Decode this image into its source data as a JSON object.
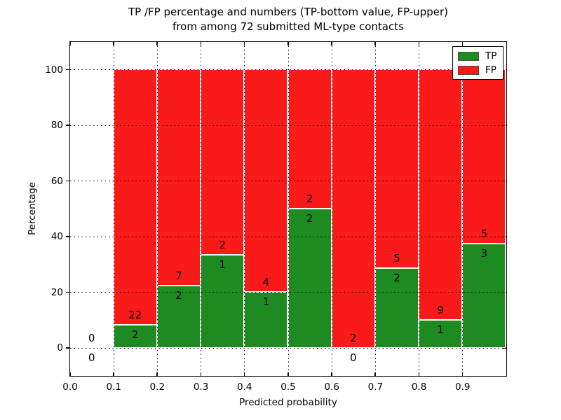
{
  "chart_data": {
    "type": "bar",
    "stacked": true,
    "title": "TP /FP percentage and numbers (TP-bottom value, FP-upper)\nfrom among 72 submitted ML-type contacts",
    "title_line1": "TP /FP percentage and numbers (TP-bottom value, FP-upper)",
    "title_line2": "from among 72 submitted ML-type contacts",
    "xlabel": "Predicted probability",
    "ylabel": "Percentage",
    "xlim": [
      0.0,
      1.0
    ],
    "ylim": [
      -10,
      110
    ],
    "x_ticks": [
      0.0,
      0.1,
      0.2,
      0.3,
      0.4,
      0.5,
      0.6,
      0.7,
      0.8,
      0.9
    ],
    "x_tick_labels": [
      "0.0",
      "0.1",
      "0.2",
      "0.3",
      "0.4",
      "0.5",
      "0.6",
      "0.7",
      "0.8",
      "0.9"
    ],
    "y_ticks": [
      0,
      20,
      40,
      60,
      80,
      100
    ],
    "y_tick_labels": [
      "0",
      "20",
      "40",
      "60",
      "80",
      "100"
    ],
    "grid": true,
    "grid_style": "dotted",
    "legend_position": "upper right",
    "total_contacts": 72,
    "series": [
      {
        "name": "TP",
        "color": "#1e8b22"
      },
      {
        "name": "FP",
        "color": "#fa1a1a"
      }
    ],
    "bins": [
      {
        "range": "0.0-0.1",
        "x_start": 0.0,
        "x_end": 0.1,
        "tp": 0,
        "fp": 0,
        "tp_pct": 0,
        "fp_pct": 0
      },
      {
        "range": "0.1-0.2",
        "x_start": 0.1,
        "x_end": 0.2,
        "tp": 2,
        "fp": 22,
        "tp_pct": 8.333,
        "fp_pct": 91.667
      },
      {
        "range": "0.2-0.3",
        "x_start": 0.2,
        "x_end": 0.3,
        "tp": 2,
        "fp": 7,
        "tp_pct": 22.222,
        "fp_pct": 77.778
      },
      {
        "range": "0.3-0.4",
        "x_start": 0.3,
        "x_end": 0.4,
        "tp": 1,
        "fp": 2,
        "tp_pct": 33.333,
        "fp_pct": 66.667
      },
      {
        "range": "0.4-0.5",
        "x_start": 0.4,
        "x_end": 0.5,
        "tp": 1,
        "fp": 4,
        "tp_pct": 20,
        "fp_pct": 80
      },
      {
        "range": "0.5-0.6",
        "x_start": 0.5,
        "x_end": 0.6,
        "tp": 2,
        "fp": 2,
        "tp_pct": 50,
        "fp_pct": 50
      },
      {
        "range": "0.6-0.7",
        "x_start": 0.6,
        "x_end": 0.7,
        "tp": 0,
        "fp": 2,
        "tp_pct": 0,
        "fp_pct": 100
      },
      {
        "range": "0.7-0.8",
        "x_start": 0.7,
        "x_end": 0.8,
        "tp": 2,
        "fp": 5,
        "tp_pct": 28.571,
        "fp_pct": 71.429
      },
      {
        "range": "0.8-0.9",
        "x_start": 0.8,
        "x_end": 0.9,
        "tp": 1,
        "fp": 9,
        "tp_pct": 10,
        "fp_pct": 90
      },
      {
        "range": "0.9-1.0",
        "x_start": 0.9,
        "x_end": 1.0,
        "tp": 3,
        "fp": 5,
        "tp_pct": 37.5,
        "fp_pct": 62.5
      }
    ]
  }
}
